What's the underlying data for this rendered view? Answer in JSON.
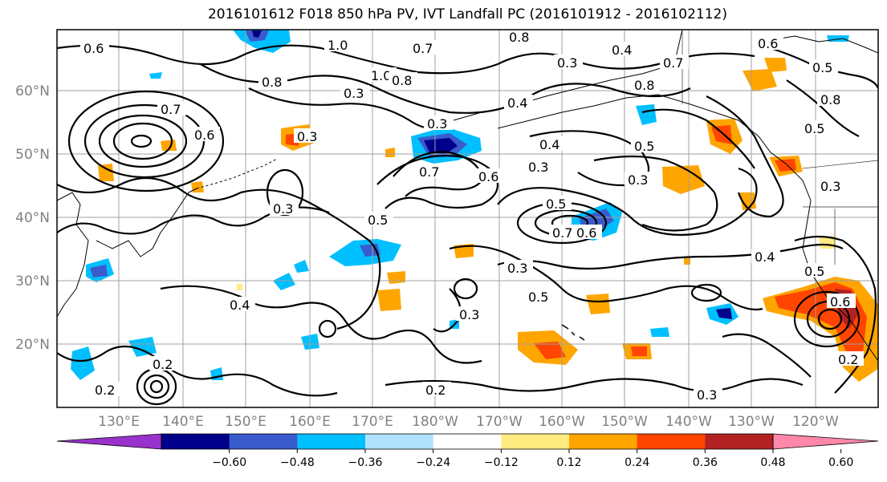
{
  "title": "2016101612 F018 850 hPa PV, IVT Landfall PC (2016101912 - 2016102112)",
  "lat_labels": [
    "60°N",
    "50°N",
    "40°N",
    "30°N",
    "20°N"
  ],
  "lon_labels": [
    "130°E",
    "140°E",
    "150°E",
    "160°E",
    "170°E",
    "180°W",
    "170°W",
    "160°W",
    "150°W",
    "140°W",
    "130°W",
    "120°W"
  ],
  "colorbar": {
    "colors": [
      "#9932cc",
      "#00008b",
      "#3a5bcc",
      "#00bfff",
      "#b0e2ff",
      "#ffffff",
      "#ffeb80",
      "#ffa500",
      "#ff4500",
      "#b22222",
      "#ff88aa"
    ],
    "tick_labels": [
      "−0.60",
      "−0.48",
      "−0.36",
      "−0.24",
      "−0.12",
      "0.12",
      "0.24",
      "0.36",
      "0.48",
      "0.60"
    ]
  },
  "contour_labels": [
    "0.6",
    "1.0",
    "0.8",
    "0.7",
    "0.4",
    "0.7",
    "0.5",
    "0.3",
    "0.8",
    "1.0",
    "0.8",
    "0.8",
    "0.4",
    "0.3",
    "0.7",
    "0.3",
    "0.4",
    "0.5",
    "0.3",
    "0.6",
    "0.7",
    "0.5",
    "0.7",
    "0.6",
    "0.3",
    "0.3",
    "0.5",
    "0.4",
    "0.3",
    "0.5",
    "0.3",
    "0.3",
    "0.4",
    "0.2",
    "0.2",
    "0.3",
    "0.5",
    "0.6",
    "0.8",
    "0.5",
    "0.3",
    "0.2",
    "0.6",
    "0.2",
    "0.6"
  ]
}
